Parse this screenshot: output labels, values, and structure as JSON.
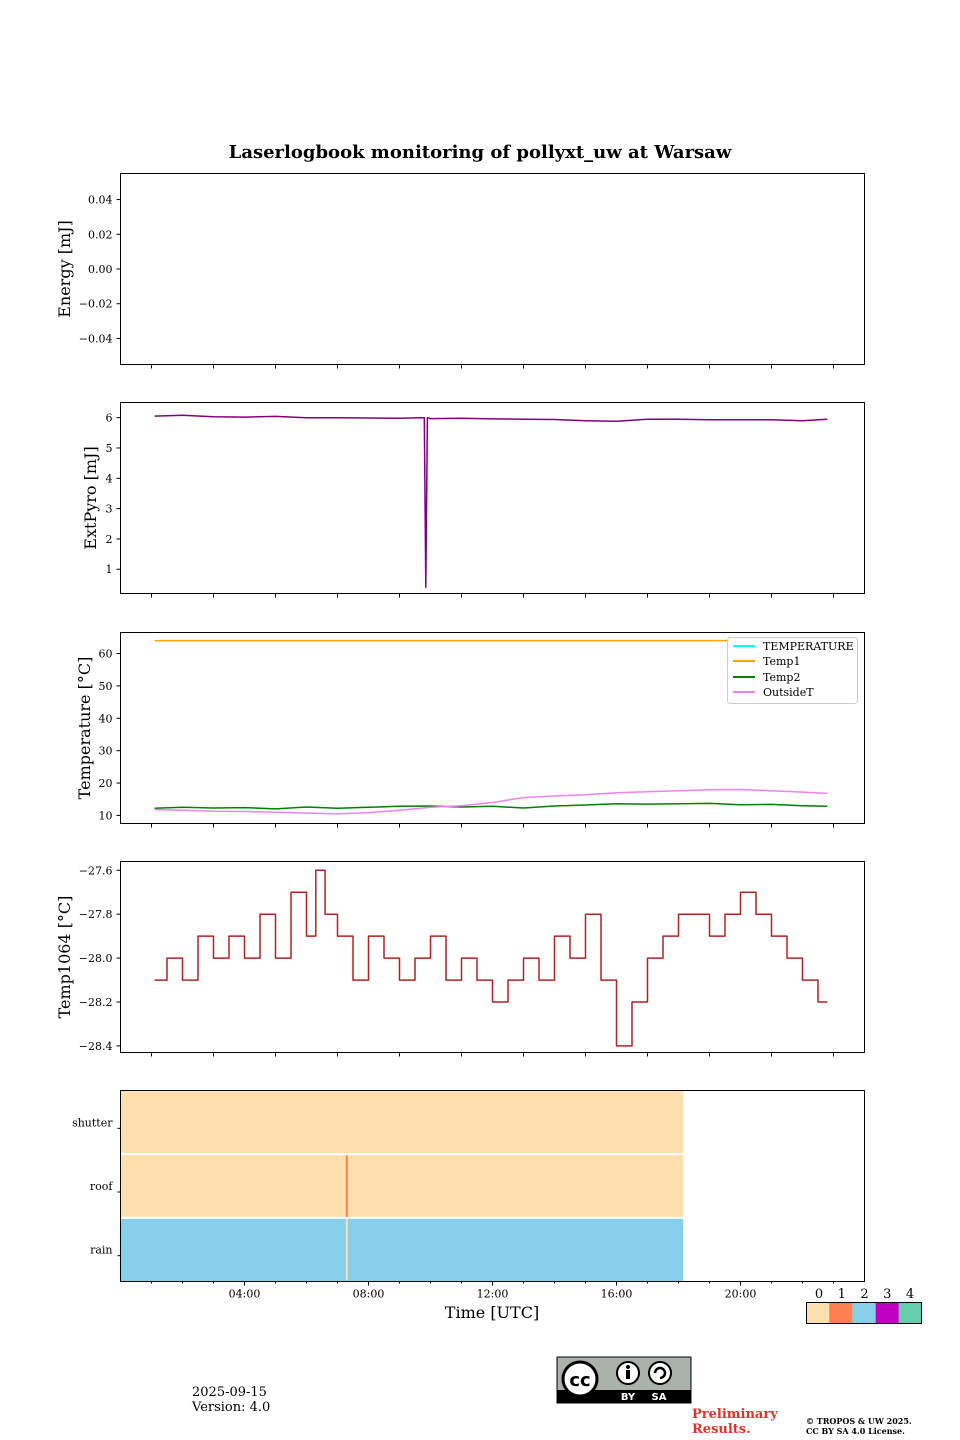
{
  "title": "Laserlogbook monitoring of pollyxt_uw at Warsaw",
  "colors": {
    "purple_series": "#800080",
    "temp1": "#ffa500",
    "temp2": "#008000",
    "outside": "#ee82ee",
    "temperature": "#00ffff",
    "temp1064": "#b22222",
    "status0": "#fde0ae",
    "status1": "#ff7f50",
    "status2": "#87ceeb",
    "status3": "#c000c0",
    "status4": "#66cdaa",
    "preliminary": "#e8302a"
  },
  "chart_data": [
    {
      "type": "line",
      "id": "energy",
      "ylabel": "Energy [mJ]",
      "ylim": [
        -0.055,
        0.055
      ],
      "yticks": [
        0.04,
        0.02,
        0.0,
        -0.02,
        -0.04
      ],
      "ytick_labels": [
        "0.04",
        "0.02",
        "0.00",
        "−0.02",
        "−0.04"
      ],
      "xlim_hours": [
        0,
        24
      ],
      "series": []
    },
    {
      "type": "line",
      "id": "extpyro",
      "ylabel": "ExtPyro [mJ]",
      "ylim": [
        0.2,
        6.5
      ],
      "yticks": [
        1,
        2,
        3,
        4,
        5,
        6
      ],
      "ytick_labels": [
        "1",
        "2",
        "3",
        "4",
        "5",
        "6"
      ],
      "xlim_hours": [
        0,
        24
      ],
      "series": [
        {
          "name": "ExtPyro",
          "x": [
            1.1,
            2.0,
            3.0,
            4.0,
            5.0,
            6.0,
            7.0,
            8.0,
            9.0,
            9.7,
            9.8,
            9.85,
            9.9,
            10.0,
            11.0,
            12.0,
            13.0,
            14.0,
            15.0,
            16.0,
            17.0,
            18.0,
            19.0,
            20.0,
            21.0,
            22.0,
            22.8
          ],
          "y": [
            6.05,
            6.08,
            6.03,
            6.02,
            6.04,
            6.0,
            6.0,
            5.99,
            5.98,
            6.0,
            6.0,
            0.4,
            6.0,
            5.97,
            5.98,
            5.96,
            5.95,
            5.94,
            5.9,
            5.88,
            5.95,
            5.95,
            5.93,
            5.93,
            5.93,
            5.9,
            5.95
          ]
        }
      ]
    },
    {
      "type": "line",
      "id": "temperature",
      "ylabel": "Temperature [°C]",
      "ylim": [
        7.5,
        66.5
      ],
      "yticks": [
        10,
        20,
        30,
        40,
        50,
        60
      ],
      "ytick_labels": [
        "10",
        "20",
        "30",
        "40",
        "50",
        "60"
      ],
      "xlim_hours": [
        0,
        24
      ],
      "legend": [
        "TEMPERATURE",
        "Temp1",
        "Temp2",
        "OutsideT"
      ],
      "legend_position": "top-right",
      "series": [
        {
          "name": "TEMPERATURE",
          "x": [],
          "y": []
        },
        {
          "name": "Temp1",
          "x": [
            1.1,
            22.8
          ],
          "y": [
            64,
            64
          ]
        },
        {
          "name": "Temp2",
          "x": [
            1.1,
            2.0,
            3.0,
            4.0,
            5.0,
            6.0,
            7.0,
            8.0,
            9.0,
            10.0,
            11.0,
            12.0,
            13.0,
            14.0,
            15.0,
            16.0,
            17.0,
            18.0,
            19.0,
            20.0,
            21.0,
            22.0,
            22.8
          ],
          "y": [
            12.2,
            12.5,
            12.3,
            12.4,
            12.0,
            12.6,
            12.2,
            12.5,
            12.8,
            12.9,
            12.6,
            12.8,
            12.3,
            12.9,
            13.2,
            13.6,
            13.5,
            13.6,
            13.7,
            13.3,
            13.4,
            13.0,
            12.8
          ]
        },
        {
          "name": "OutsideT",
          "x": [
            1.1,
            2.0,
            3.0,
            4.0,
            5.0,
            6.0,
            7.0,
            8.0,
            9.0,
            10.0,
            11.0,
            12.0,
            13.0,
            14.0,
            15.0,
            16.0,
            17.0,
            18.0,
            19.0,
            20.0,
            21.0,
            22.0,
            22.8
          ],
          "y": [
            11.8,
            11.6,
            11.3,
            11.2,
            11.0,
            10.7,
            10.5,
            10.8,
            11.6,
            12.5,
            13.0,
            14.0,
            15.5,
            16.0,
            16.4,
            17.0,
            17.3,
            17.6,
            17.9,
            18.0,
            17.6,
            17.2,
            16.8
          ]
        }
      ]
    },
    {
      "type": "line",
      "id": "temp1064",
      "ylabel": "Temp1064 [°C]",
      "ylim": [
        -28.43,
        -27.56
      ],
      "yticks": [
        -27.6,
        -27.8,
        -28.0,
        -28.2,
        -28.4
      ],
      "ytick_labels": [
        "−27.6",
        "−27.8",
        "−28.0",
        "−28.2",
        "−28.4"
      ],
      "xlim_hours": [
        0,
        24
      ],
      "series": [
        {
          "name": "Temp1064",
          "x": [
            1.1,
            1.5,
            2.0,
            2.5,
            3.0,
            3.5,
            4.0,
            4.5,
            5.0,
            5.5,
            6.0,
            6.3,
            6.6,
            7.0,
            7.5,
            8.0,
            8.5,
            9.0,
            9.5,
            10.0,
            10.5,
            11.0,
            11.5,
            12.0,
            12.5,
            13.0,
            13.5,
            14.0,
            14.5,
            15.0,
            15.5,
            16.0,
            16.5,
            17.0,
            17.5,
            18.0,
            18.5,
            19.0,
            19.5,
            20.0,
            20.5,
            21.0,
            21.5,
            22.0,
            22.5,
            22.8
          ],
          "y": [
            -28.1,
            -28.0,
            -28.1,
            -27.9,
            -28.0,
            -27.9,
            -28.0,
            -27.8,
            -28.0,
            -27.7,
            -27.9,
            -27.6,
            -27.8,
            -27.9,
            -28.1,
            -27.9,
            -28.0,
            -28.1,
            -28.0,
            -27.9,
            -28.1,
            -28.0,
            -28.1,
            -28.2,
            -28.1,
            -28.0,
            -28.1,
            -27.9,
            -28.0,
            -27.8,
            -28.1,
            -28.4,
            -28.2,
            -28.0,
            -27.9,
            -27.8,
            -27.8,
            -27.9,
            -27.8,
            -27.7,
            -27.8,
            -27.9,
            -28.0,
            -28.1,
            -28.2,
            -28.2
          ]
        }
      ]
    },
    {
      "type": "heatmap",
      "id": "status",
      "rows": [
        "shutter",
        "roof",
        "rain"
      ],
      "xlim_hours": [
        0,
        24
      ],
      "data_end_hour": 18.15,
      "row_colors": [
        "#fde0ae",
        "#fde0ae",
        "#87ceeb"
      ],
      "events": [
        {
          "row": "roof",
          "hour": 7.3,
          "value": 1
        },
        {
          "row": "rain",
          "hour": 7.3,
          "value": 0
        }
      ],
      "xticks_hours": [
        4,
        8,
        12,
        16,
        20
      ],
      "xtick_labels": [
        "04:00",
        "08:00",
        "12:00",
        "16:00",
        "20:00"
      ],
      "xlabel": "Time [UTC]"
    }
  ],
  "colorbar": {
    "labels": [
      "0",
      "1",
      "2",
      "3",
      "4"
    ],
    "colors": [
      "#fde0ae",
      "#ff7f50",
      "#87ceeb",
      "#c000c0",
      "#66cdaa"
    ]
  },
  "footer": {
    "date": "2025-09-15",
    "version": "Version: 4.0",
    "preliminary_line1": "Preliminary",
    "preliminary_line2": "Results.",
    "copyright_line1": "© TROPOS & UW 2025.",
    "copyright_line2": "CC BY SA 4.0 License.",
    "license_by": "BY",
    "license_sa": "SA",
    "license_cc": "cc"
  }
}
